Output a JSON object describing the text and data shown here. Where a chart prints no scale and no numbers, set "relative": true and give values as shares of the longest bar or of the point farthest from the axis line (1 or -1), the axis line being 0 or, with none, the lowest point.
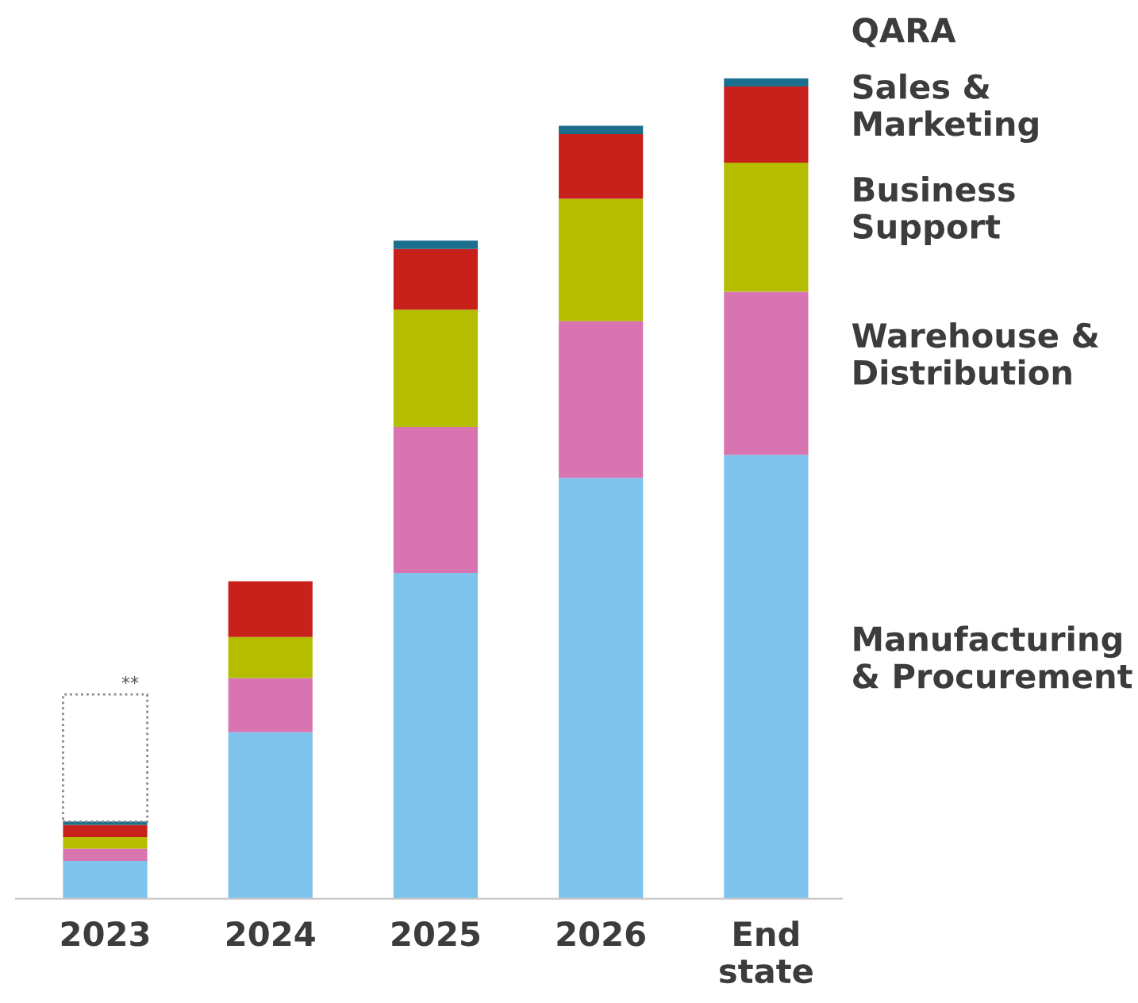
{
  "chart_data": {
    "type": "bar",
    "stacked": true,
    "relative": true,
    "categories": [
      "2023",
      "2024",
      "2025",
      "2026",
      "End\nstate"
    ],
    "series": [
      {
        "name": "Manufacturing\n& Procurement",
        "color": "#7dc3ec",
        "values": [
          0.046,
          0.203,
          0.397,
          0.513,
          0.541
        ]
      },
      {
        "name": "Warehouse &\nDistribution",
        "color": "#d874b0",
        "values": [
          0.015,
          0.066,
          0.178,
          0.191,
          0.199
        ]
      },
      {
        "name": "Business\nSupport",
        "color": "#b5bd00",
        "values": [
          0.014,
          0.05,
          0.143,
          0.149,
          0.157
        ]
      },
      {
        "name": "Sales &\nMarketing",
        "color": "#c8211c",
        "values": [
          0.015,
          0.068,
          0.074,
          0.079,
          0.093
        ]
      },
      {
        "name": "QARA",
        "color": "#1a6e8e",
        "values": [
          0.004,
          0,
          0.01,
          0.01,
          0.01
        ]
      }
    ],
    "annotations": [
      "**"
    ],
    "legend": "right"
  }
}
